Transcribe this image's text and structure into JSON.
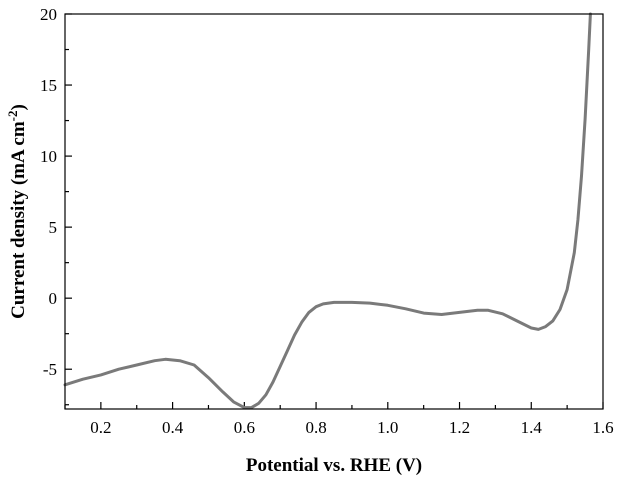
{
  "chart_data": {
    "type": "line",
    "title": "",
    "xlabel": "Potential vs. RHE (V)",
    "ylabel_main": "Current density (mA cm",
    "ylabel_sup": "-2",
    "ylabel_close": ")",
    "xlim": [
      0.1,
      1.6
    ],
    "ylim": [
      -7.8,
      20
    ],
    "xticks": [
      0.2,
      0.4,
      0.6,
      0.8,
      1.0,
      1.2,
      1.4,
      1.6
    ],
    "xtick_labels": [
      "0.2",
      "0.4",
      "0.6",
      "0.8",
      "1.0",
      "1.2",
      "1.4",
      "1.6"
    ],
    "yticks": [
      -5,
      0,
      5,
      10,
      15,
      20
    ],
    "ytick_labels": [
      "-5",
      "0",
      "5",
      "10",
      "15",
      "20"
    ],
    "grid": false,
    "line_color": "#7a7a7a",
    "series": [
      {
        "x": [
          0.1,
          0.15,
          0.2,
          0.25,
          0.3,
          0.35,
          0.38,
          0.42,
          0.46,
          0.5,
          0.54,
          0.57,
          0.6,
          0.62,
          0.64,
          0.66,
          0.68,
          0.7,
          0.72,
          0.74,
          0.76,
          0.78,
          0.8,
          0.82,
          0.85,
          0.9,
          0.95,
          1.0,
          1.05,
          1.1,
          1.15,
          1.2,
          1.25,
          1.28,
          1.32,
          1.36,
          1.4,
          1.42,
          1.44,
          1.46,
          1.48,
          1.5,
          1.52,
          1.53,
          1.54,
          1.55,
          1.56,
          1.565
        ],
        "y": [
          -6.1,
          -5.7,
          -5.4,
          -5.0,
          -4.7,
          -4.4,
          -4.3,
          -4.4,
          -4.7,
          -5.6,
          -6.6,
          -7.3,
          -7.7,
          -7.7,
          -7.4,
          -6.8,
          -5.9,
          -4.8,
          -3.7,
          -2.6,
          -1.7,
          -1.0,
          -0.6,
          -0.4,
          -0.3,
          -0.3,
          -0.35,
          -0.5,
          -0.75,
          -1.05,
          -1.15,
          -1.0,
          -0.85,
          -0.85,
          -1.1,
          -1.6,
          -2.1,
          -2.2,
          -2.0,
          -1.6,
          -0.8,
          0.6,
          3.2,
          5.5,
          8.6,
          12.6,
          17.5,
          20.5
        ]
      }
    ]
  }
}
